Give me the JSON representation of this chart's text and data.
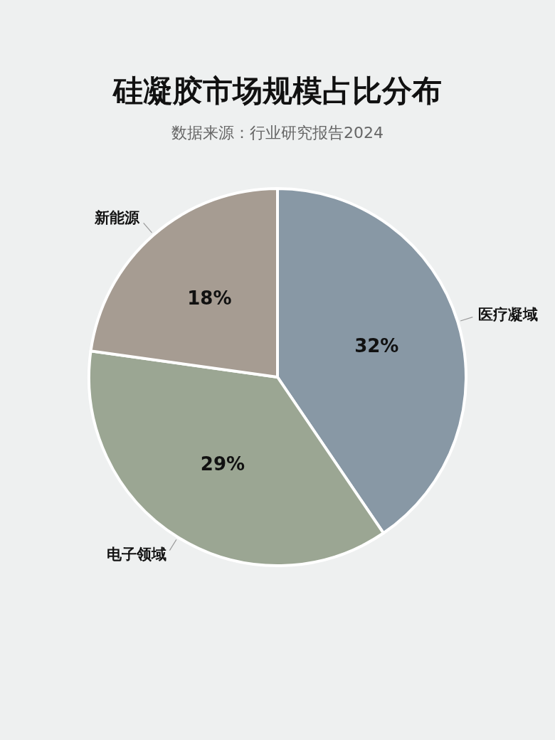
{
  "chart_data": {
    "type": "pie",
    "title": "硅凝胶市场规模占比分布",
    "subtitle": "数据来源：行业研究报告2024",
    "categories": [
      "医疗凝域",
      "电子领域",
      "新能源"
    ],
    "values": [
      32,
      29,
      18
    ],
    "value_labels": [
      "32%",
      "29%",
      "18%"
    ],
    "colors": [
      "#8898a5",
      "#9ba693",
      "#a69c92"
    ]
  }
}
